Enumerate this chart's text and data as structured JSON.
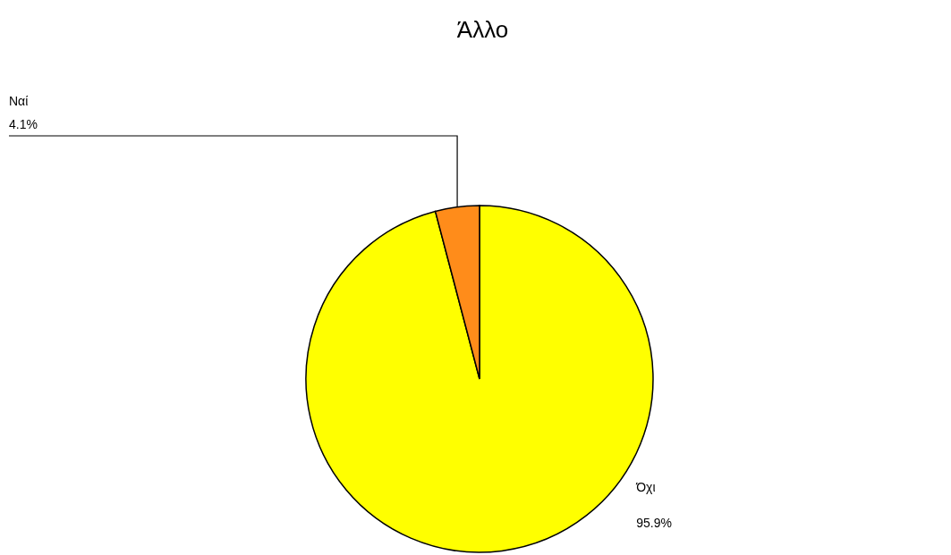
{
  "chart_data": {
    "type": "pie",
    "title": "Άλλο",
    "categories": [
      "Όχι",
      "Ναί"
    ],
    "values": [
      95.9,
      4.1
    ],
    "colors": [
      "#ffff00",
      "#ff8c1a"
    ],
    "value_labels": [
      "95.9%",
      "4.1%"
    ]
  }
}
